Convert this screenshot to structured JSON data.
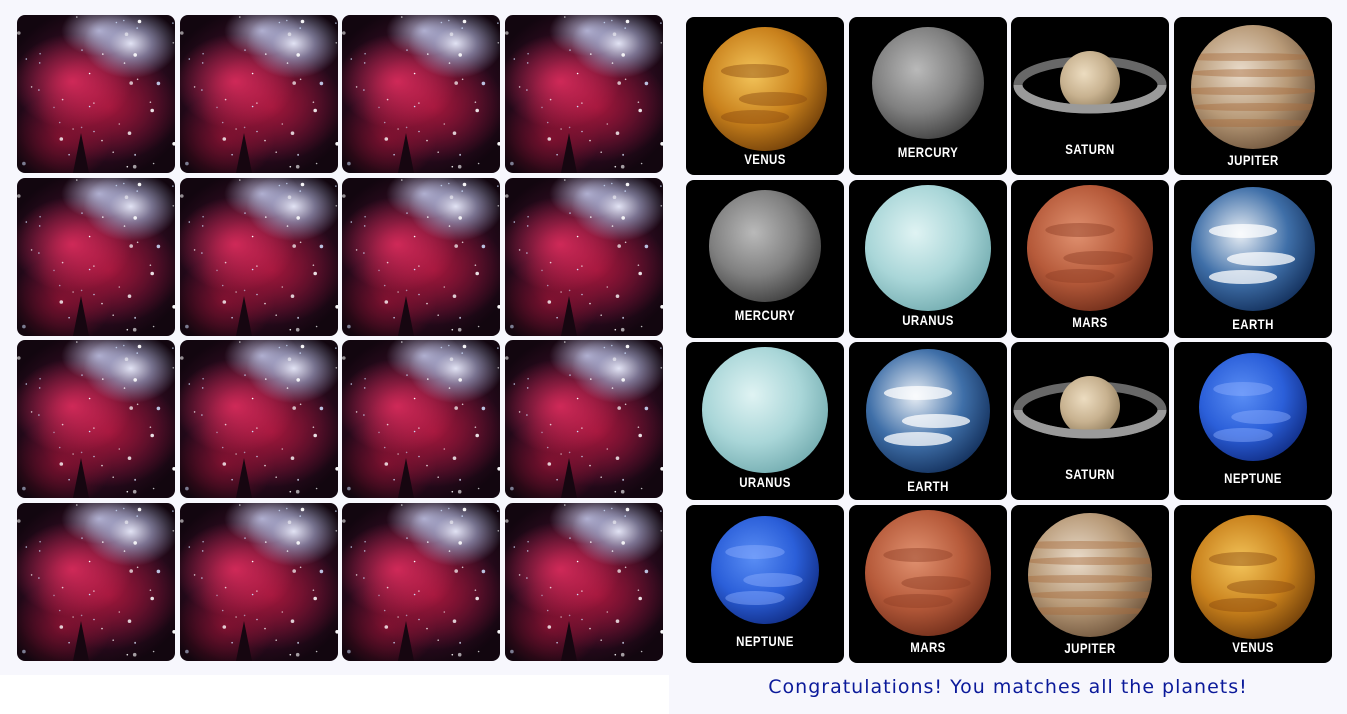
{
  "left_board": {
    "card_back": "nebula",
    "cards_face_down": 16
  },
  "right_board": {
    "cards": [
      {
        "planet": "VENUS"
      },
      {
        "planet": "MERCURY"
      },
      {
        "planet": "SATURN"
      },
      {
        "planet": "JUPITER"
      },
      {
        "planet": "MERCURY"
      },
      {
        "planet": "URANUS"
      },
      {
        "planet": "MARS"
      },
      {
        "planet": "EARTH"
      },
      {
        "planet": "URANUS"
      },
      {
        "planet": "EARTH"
      },
      {
        "planet": "SATURN"
      },
      {
        "planet": "NEPTUNE"
      },
      {
        "planet": "NEPTUNE"
      },
      {
        "planet": "MARS"
      },
      {
        "planet": "JUPITER"
      },
      {
        "planet": "VENUS"
      }
    ]
  },
  "status": {
    "message": "Congratulations! You matches all the planets!"
  },
  "colors": {
    "panel_background": "#f7f7fd",
    "message_text": "#0b1a9a",
    "card_face_background": "#000000"
  }
}
